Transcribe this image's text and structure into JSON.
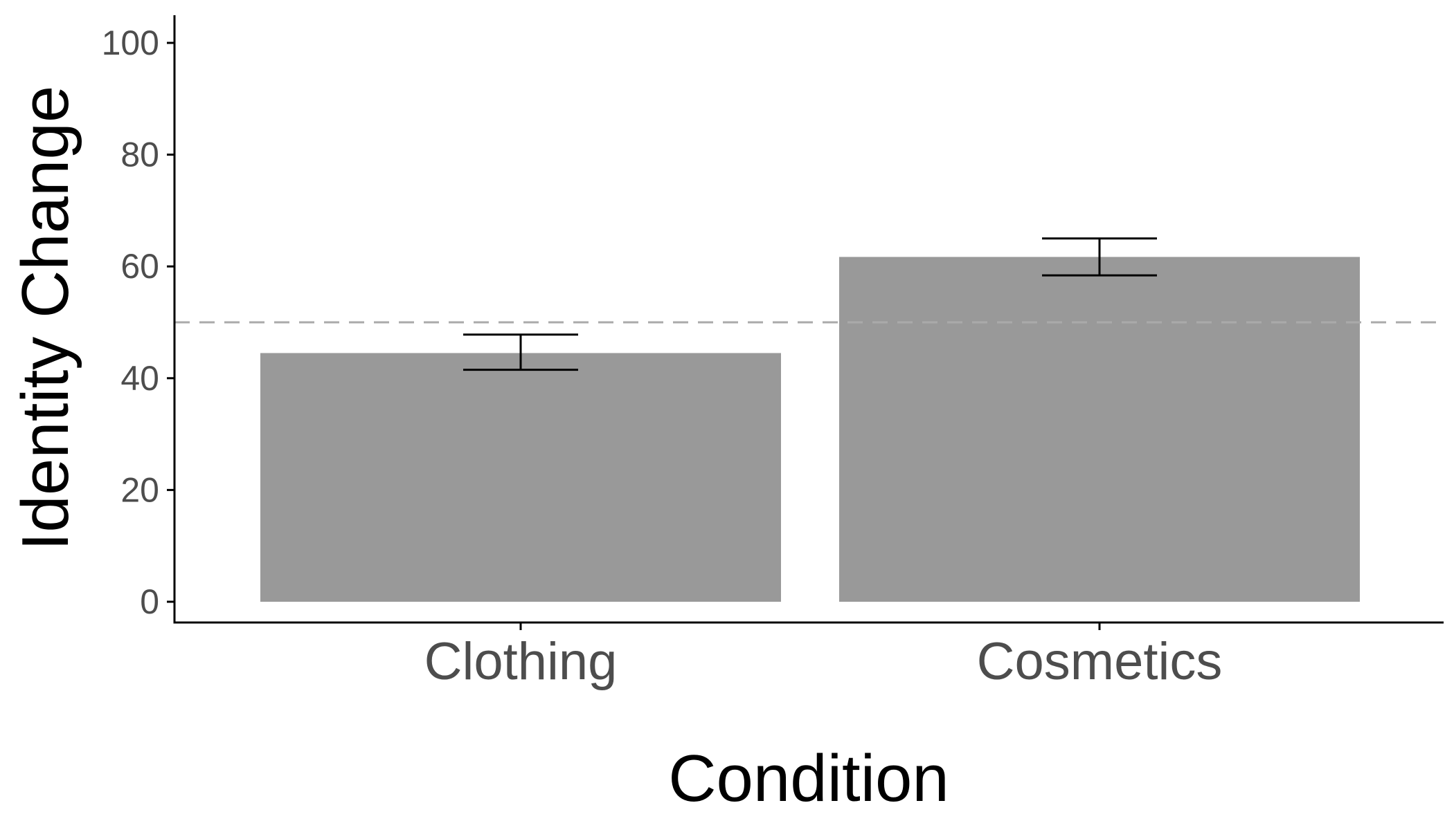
{
  "chart_data": {
    "type": "bar",
    "title": "",
    "xlabel": "Condition",
    "ylabel": "Identity Change",
    "categories": [
      "Clothing",
      "Cosmetics"
    ],
    "values": [
      44.5,
      61.7
    ],
    "error_bars": [
      {
        "low": 41.5,
        "high": 47.8
      },
      {
        "low": 58.4,
        "high": 65.0
      }
    ],
    "reference_line": {
      "y": 50,
      "style": "dashed"
    },
    "ylim": [
      0,
      100
    ],
    "yticks": [
      0,
      20,
      40,
      60,
      80,
      100
    ],
    "ytick_labels": [
      "0",
      "20",
      "40",
      "60",
      "80",
      "100"
    ],
    "grid": false,
    "legend": "none",
    "colors": {
      "bar": "#999999",
      "error_bar": "#000000",
      "reference_line": "#aaaaaa",
      "axis": "#000000",
      "tick_label": "#4d4d4d"
    }
  }
}
